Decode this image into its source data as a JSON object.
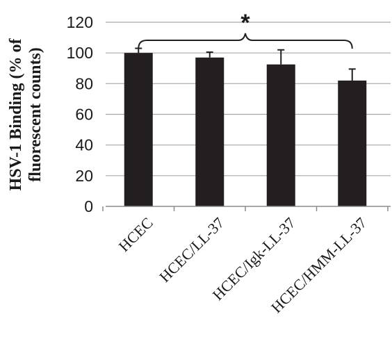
{
  "chart_data": {
    "type": "bar",
    "categories": [
      "HCEC",
      "HCEC/LL-37",
      "HCEC/Igk-LL-37",
      "HCEC/HMM-LL-37"
    ],
    "values": [
      100,
      97,
      92.5,
      82
    ],
    "errors": [
      3,
      3.5,
      9.5,
      7.5
    ],
    "ylabel_lines": [
      "HSV-1 Binding (% of",
      "fluorescent counts)"
    ],
    "ylim": [
      0,
      120
    ],
    "yticks": [
      0,
      20,
      40,
      60,
      80,
      100,
      120
    ],
    "grid": true,
    "bar_color": "#231f20",
    "significance": {
      "from": 0,
      "to": 3,
      "label": "*"
    }
  }
}
